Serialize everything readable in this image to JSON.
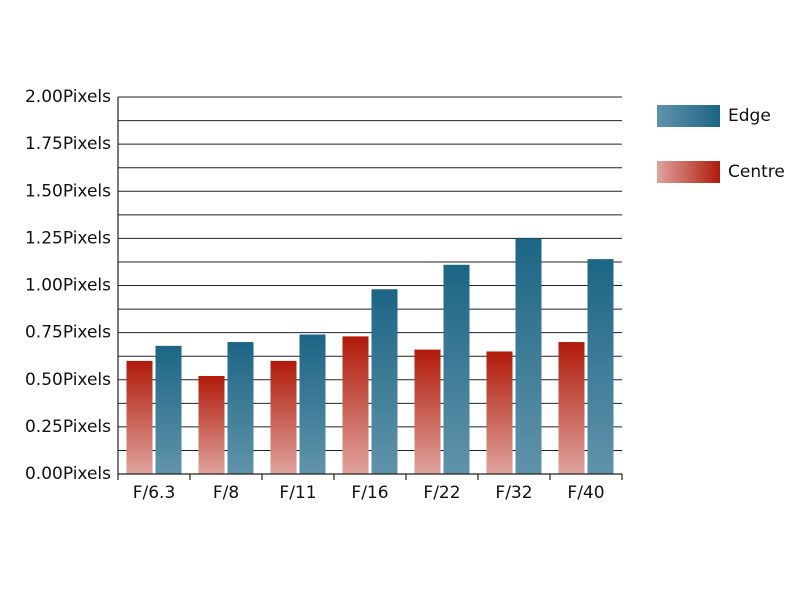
{
  "chart_data": {
    "type": "bar",
    "categories": [
      "F/6.3",
      "F/8",
      "F/11",
      "F/16",
      "F/22",
      "F/32",
      "F/40"
    ],
    "series": [
      {
        "name": "Centre",
        "color": "#b01a0a",
        "values": [
          0.6,
          0.52,
          0.6,
          0.73,
          0.66,
          0.65,
          0.7
        ]
      },
      {
        "name": "Edge",
        "color": "#1c6585",
        "values": [
          0.68,
          0.7,
          0.74,
          0.98,
          1.11,
          1.25,
          1.14
        ]
      }
    ],
    "ylim": [
      0,
      2
    ],
    "yticks": [
      {
        "value": 0,
        "label": "0.00Pixels"
      },
      {
        "value": 0.25,
        "label": "0.25Pixels"
      },
      {
        "value": 0.5,
        "label": "0.50Pixels"
      },
      {
        "value": 0.75,
        "label": "0.75Pixels"
      },
      {
        "value": 1,
        "label": "1.00Pixels"
      },
      {
        "value": 1.25,
        "label": "1.25Pixels"
      },
      {
        "value": 1.5,
        "label": "1.50Pixels"
      },
      {
        "value": 1.75,
        "label": "1.75Pixels"
      },
      {
        "value": 2,
        "label": "2.00Pixels"
      }
    ],
    "minor_yticks": [
      0.125,
      0.375,
      0.625,
      0.875,
      1.125,
      1.375,
      1.625,
      1.875
    ],
    "grid": true,
    "legend": "right"
  }
}
